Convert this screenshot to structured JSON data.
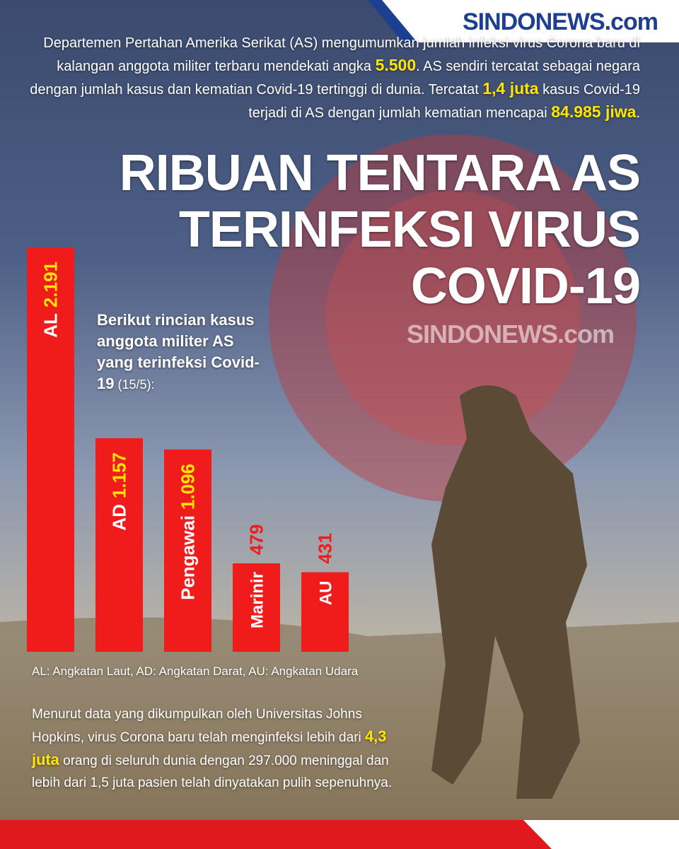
{
  "logo": "SINDONEWS.com",
  "intro": [
    "Departemen Pertahan Amerika Serikat (AS) mengumumkan jumlah infeksi virus Corona baru di kalangan anggota militer terbaru mendekati angka ",
    "5.500",
    ". AS sendiri tercatat sebagai negara dengan jumlah kasus dan kematian Covid-19 tertinggi di dunia. Tercatat ",
    "1,4 juta",
    " kasus Covid-19 terjadi di AS dengan jumlah kematian mencapai ",
    "84.985 jiwa",
    "."
  ],
  "title": [
    "RIBUAN TENTARA AS",
    "TERINFEKSI VIRUS",
    "COVID-19"
  ],
  "chart_intro": [
    "Berikut rincian kasus anggota militer AS yang terinfeksi Covid-19",
    " (15/5):"
  ],
  "chart_data": {
    "type": "bar",
    "categories": [
      "AL",
      "AD",
      "Pengawai",
      "Marinir",
      "AU"
    ],
    "values": [
      2191,
      1157,
      1096,
      479,
      431
    ],
    "value_labels": [
      "2.191",
      "1.157",
      "1.096",
      "479",
      "431"
    ],
    "color": "#f01c1c"
  },
  "footnote": "AL: Angkatan Laut, AD: Angkatan Darat, AU: Angkatan Udara",
  "closing": [
    "Menurut data yang dikumpulkan oleh Universitas Johns Hopkins, virus Corona baru telah menginfeksi lebih dari ",
    "4,3 juta",
    " orang di seluruh dunia dengan 297.000 meninggal dan lebih dari 1,5 juta pasien telah dinyatakan pulih sepenuhnya."
  ]
}
